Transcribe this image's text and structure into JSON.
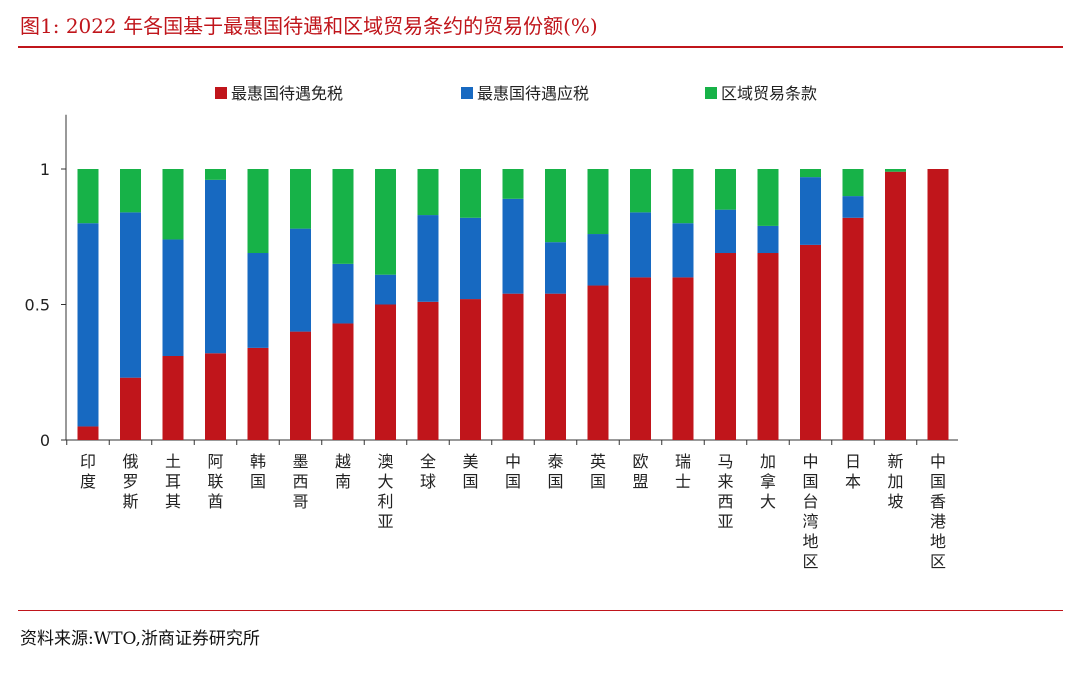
{
  "header": {
    "title": "图1:  2022 年各国基于最惠国待遇和区域贸易条约的贸易份额(%)"
  },
  "footer": {
    "source": "资料来源:WTO,浙商证券研究所"
  },
  "colors": {
    "mfn_zero": "#c0151b",
    "mfn_dutiable": "#1769c1",
    "rta": "#17b248",
    "accent": "#c0151b"
  },
  "chart_data": {
    "type": "bar",
    "stacked": true,
    "title": "",
    "xlabel": "",
    "ylabel": "",
    "ylim": [
      0,
      1.2
    ],
    "yticks": [
      {
        "value": 0,
        "label": "0"
      },
      {
        "value": 0.5,
        "label": "0.5"
      },
      {
        "value": 1,
        "label": "1"
      }
    ],
    "grid": false,
    "legend_position": "top",
    "categories": [
      "印度",
      "俄罗斯",
      "土耳其",
      "阿联酋",
      "韩国",
      "墨西哥",
      "越南",
      "澳大利亚",
      "全球",
      "美国",
      "中国",
      "泰国",
      "英国",
      "欧盟",
      "瑞士",
      "马来西亚",
      "加拿大",
      "中国台湾地区",
      "日本",
      "新加坡",
      "中国香港地区"
    ],
    "series": [
      {
        "name": "最惠国待遇免税",
        "color": "#c0151b",
        "values": [
          0.05,
          0.23,
          0.31,
          0.32,
          0.34,
          0.4,
          0.43,
          0.5,
          0.51,
          0.52,
          0.54,
          0.54,
          0.57,
          0.6,
          0.6,
          0.69,
          0.69,
          0.72,
          0.82,
          0.99,
          1.0
        ]
      },
      {
        "name": "最惠国待遇应税",
        "color": "#1769c1",
        "values": [
          0.75,
          0.61,
          0.43,
          0.64,
          0.35,
          0.38,
          0.22,
          0.11,
          0.32,
          0.3,
          0.35,
          0.19,
          0.19,
          0.24,
          0.2,
          0.16,
          0.1,
          0.25,
          0.08,
          0.0,
          0.0
        ]
      },
      {
        "name": "区域贸易条款",
        "color": "#17b248",
        "values": [
          0.2,
          0.16,
          0.26,
          0.04,
          0.31,
          0.22,
          0.35,
          0.39,
          0.17,
          0.18,
          0.11,
          0.27,
          0.24,
          0.16,
          0.2,
          0.15,
          0.21,
          0.03,
          0.1,
          0.01,
          0.0
        ]
      }
    ]
  }
}
